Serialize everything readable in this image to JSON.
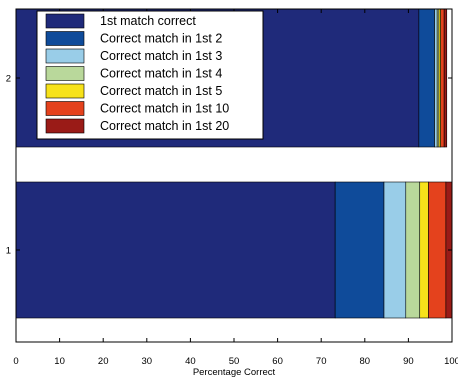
{
  "chart_data": {
    "type": "bar",
    "orientation": "horizontal",
    "stacked": true,
    "categories": [
      "1",
      "2"
    ],
    "xlabel": "Percentage Correct",
    "ylabel": "",
    "xlim": [
      0,
      100
    ],
    "xticks": [
      0,
      10,
      20,
      30,
      40,
      50,
      60,
      70,
      80,
      90,
      100
    ],
    "grid": false,
    "legend_position": "top-left",
    "series": [
      {
        "name": "1st match correct",
        "color": "#1f2a7a",
        "values": [
          73.2,
          92.4
        ]
      },
      {
        "name": "Correct match in 1st 2",
        "color": "#0f4b9a",
        "values": [
          11.2,
          3.6
        ]
      },
      {
        "name": "Correct match in 1st 3",
        "color": "#99cde8",
        "values": [
          5.0,
          0.6
        ]
      },
      {
        "name": "Correct match in 1st 4",
        "color": "#b9d89b",
        "values": [
          3.2,
          0.4
        ]
      },
      {
        "name": "Correct match in 1st 5",
        "color": "#f7e21a",
        "values": [
          2.0,
          0.4
        ]
      },
      {
        "name": "Correct match in 1st 10",
        "color": "#e4421d",
        "values": [
          4.0,
          0.8
        ]
      },
      {
        "name": "Correct match in 1st 20",
        "color": "#9a1b17",
        "values": [
          1.4,
          0.6
        ]
      }
    ]
  }
}
